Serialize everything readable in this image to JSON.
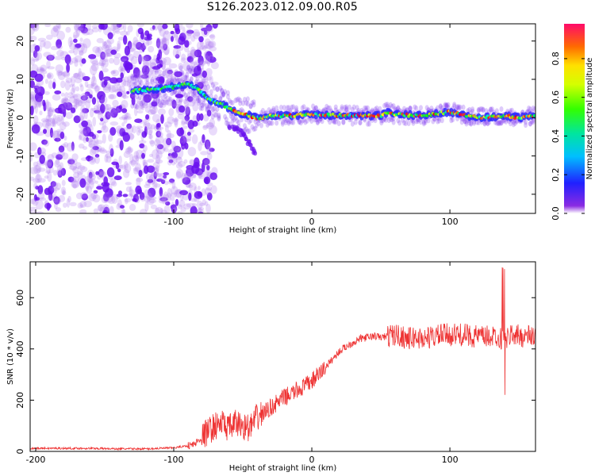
{
  "figure": {
    "title": "S126.2023.012.09.00.R05"
  },
  "chart_data": [
    {
      "type": "heatmap",
      "title": "",
      "xlabel": "Height of straight line (km)",
      "ylabel": "Frequency (Hz)",
      "xlim": [
        -204,
        162
      ],
      "ylim": [
        -25,
        24.5
      ],
      "xticks": [
        -200,
        -100,
        0,
        100
      ],
      "xtick_labels": [
        "-200",
        "-100",
        "0",
        "100"
      ],
      "yticks": [
        20,
        10,
        0,
        -10,
        -20
      ],
      "ytick_labels": [
        "20",
        "10",
        "0",
        "-10",
        "-20"
      ],
      "grid": false,
      "colorbar": {
        "label": "Normalized spectral amplitude",
        "range": [
          0,
          0.98
        ],
        "ticks": [
          0.0,
          0.2,
          0.4,
          0.6,
          0.8
        ],
        "tick_labels": [
          "0.0",
          "0.2",
          "0.4",
          "0.6",
          "0.8"
        ]
      },
      "ridge": {
        "x": [
          -130,
          -110,
          -100,
          -95,
          -90,
          -85,
          -80,
          -75,
          -70,
          -65,
          -60,
          -55,
          -50,
          -45,
          -40,
          -35,
          -30,
          -20,
          0,
          20,
          40,
          50,
          55,
          60,
          80,
          100,
          120,
          140,
          150,
          162
        ],
        "y": [
          7,
          7.5,
          8,
          8.5,
          9,
          8,
          6.5,
          5,
          4,
          3.5,
          2.5,
          1.5,
          1,
          0.5,
          0,
          0,
          0.5,
          0.5,
          0.8,
          0.6,
          0.5,
          0.5,
          1.5,
          0.8,
          0.5,
          1.5,
          0,
          0.5,
          0,
          0.5
        ],
        "description_range_hz": [
          -2,
          3
        ]
      },
      "noise_region_x": [
        -204,
        -85
      ],
      "secondary_branch": {
        "x": [
          -60,
          -55,
          -50,
          -45,
          -40
        ],
        "y": [
          -2,
          -3,
          -4,
          -7,
          -10
        ]
      }
    },
    {
      "type": "line",
      "title": "",
      "xlabel": "Height of straight line (km)",
      "ylabel": "SNR (10 * v/v)",
      "xlim": [
        -204,
        162
      ],
      "ylim": [
        0,
        740
      ],
      "xticks": [
        -200,
        -100,
        0,
        100
      ],
      "xtick_labels": [
        "-200",
        "-100",
        "0",
        "100"
      ],
      "yticks": [
        0,
        200,
        400,
        600
      ],
      "ytick_labels": [
        "0",
        "200",
        "400",
        "600"
      ],
      "grid": false,
      "line_color": "#ee3333",
      "series": [
        {
          "x": [
            -204,
            -190,
            -180,
            -160,
            -140,
            -120,
            -110,
            -100,
            -95,
            -90,
            -85,
            -80,
            -75,
            -70,
            -65,
            -60,
            -55,
            -50,
            -45,
            -40,
            -35,
            -30,
            -25,
            -20,
            -15,
            -10,
            -5,
            0,
            5,
            10,
            15,
            20,
            25,
            30,
            35,
            40,
            45,
            50,
            55,
            60,
            65,
            70,
            75,
            80,
            85,
            90,
            95,
            100,
            105,
            110,
            115,
            120,
            125,
            130,
            135,
            140,
            145,
            150,
            155,
            162
          ],
          "y": [
            12,
            12,
            12,
            12,
            10,
            10,
            12,
            14,
            18,
            22,
            28,
            55,
            80,
            100,
            110,
            90,
            110,
            100,
            90,
            130,
            150,
            170,
            190,
            210,
            225,
            240,
            255,
            275,
            300,
            330,
            360,
            390,
            410,
            425,
            440,
            445,
            450,
            445,
            450,
            455,
            450,
            440,
            445,
            440,
            445,
            450,
            455,
            455,
            455,
            455,
            450,
            450,
            445,
            450,
            450,
            430,
            460,
            450,
            450,
            450
          ]
        }
      ]
    }
  ]
}
